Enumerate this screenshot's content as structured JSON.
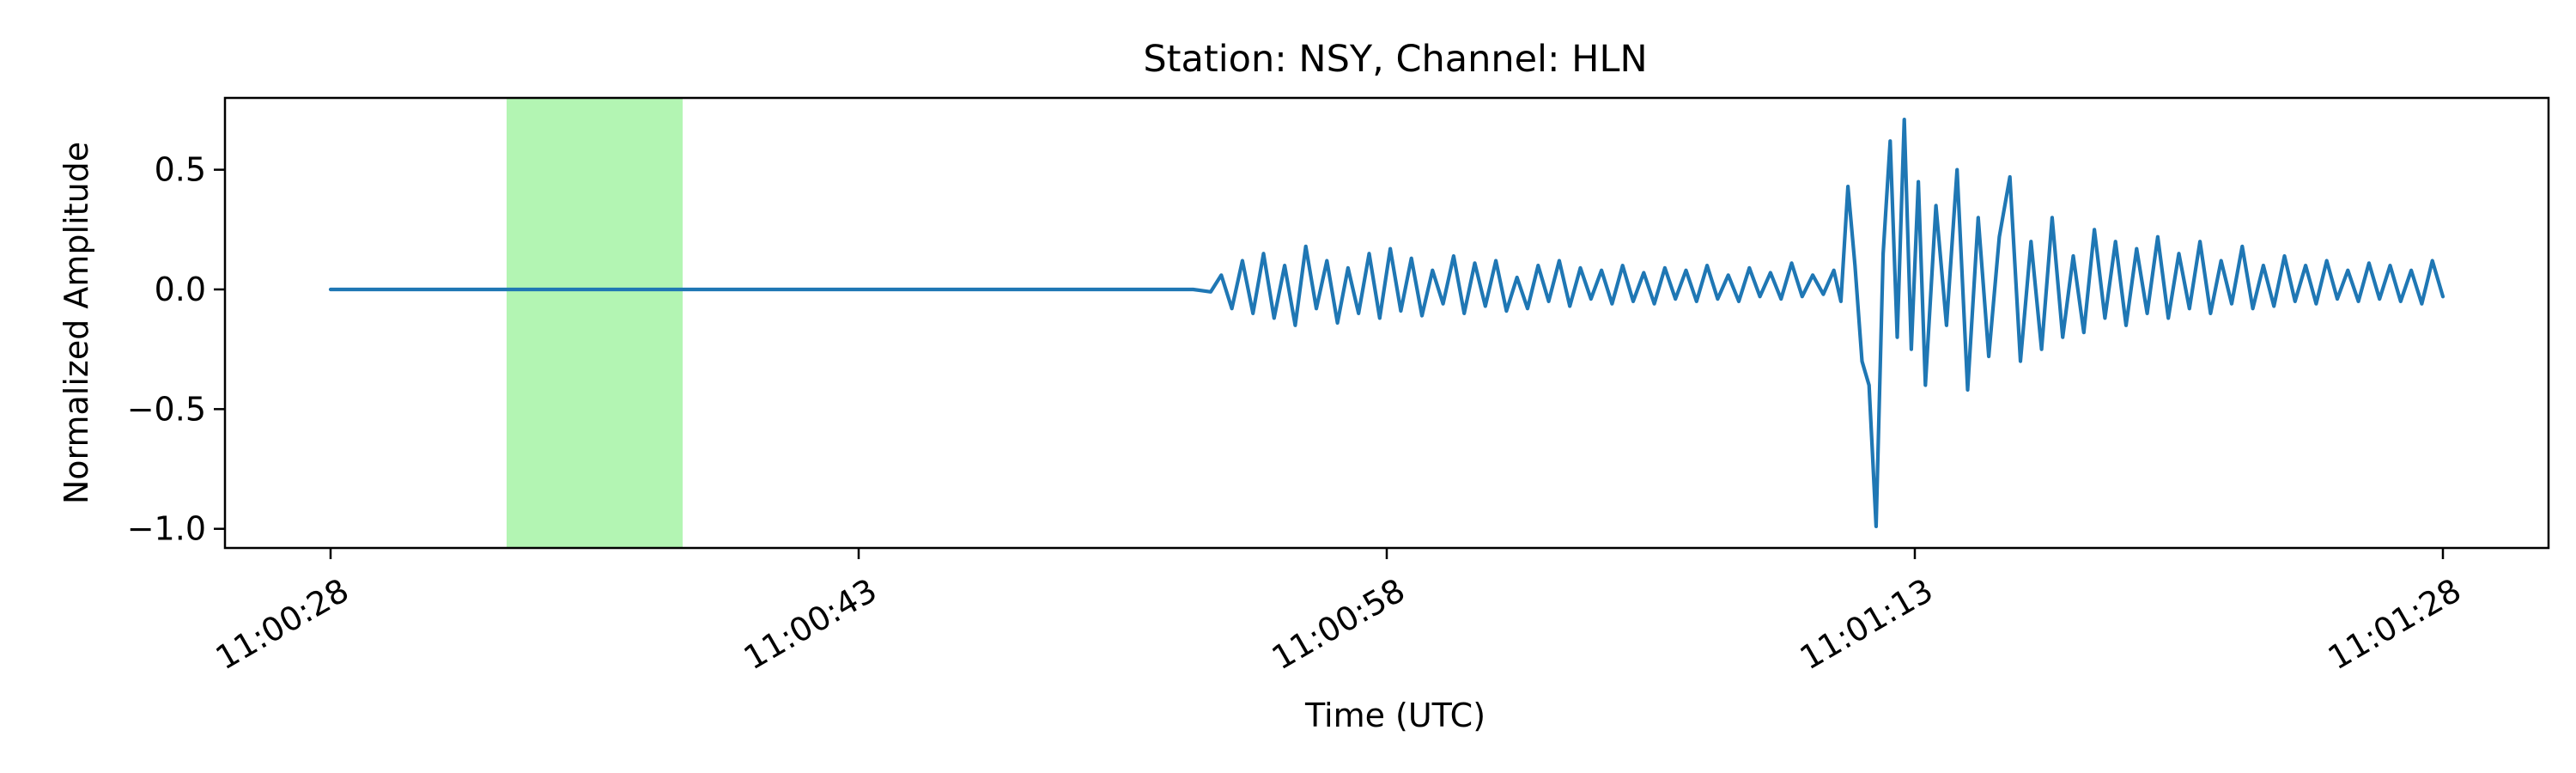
{
  "chart_data": {
    "type": "line",
    "title": "Station: NSY, Channel: HLN",
    "xlabel": "Time (UTC)",
    "ylabel": "Normalized Amplitude",
    "x_tick_values": [
      0,
      15,
      30,
      45,
      60
    ],
    "x_tick_labels": [
      "11:00:28",
      "11:00:43",
      "11:00:58",
      "11:01:13",
      "11:01:28"
    ],
    "y_ticks": [
      0.5,
      0.0,
      -0.5,
      -1.0
    ],
    "y_tick_labels": [
      "0.5",
      "0.0",
      "−0.5",
      "−1.0"
    ],
    "xlim": [
      -3.0,
      63.0
    ],
    "ylim": [
      -1.08,
      0.8
    ],
    "grid": false,
    "highlight_window": {
      "start": 5.0,
      "end": 10.0,
      "color": "#b3f5b3"
    },
    "series": [
      {
        "color": "#1f77b4",
        "x": [
          0,
          5,
          10,
          15,
          20,
          24.5,
          25.0,
          25.3,
          25.6,
          25.9,
          26.2,
          26.5,
          26.8,
          27.1,
          27.4,
          27.7,
          28.0,
          28.3,
          28.6,
          28.9,
          29.2,
          29.5,
          29.8,
          30.1,
          30.4,
          30.7,
          31.0,
          31.3,
          31.6,
          31.9,
          32.2,
          32.5,
          32.8,
          33.1,
          33.4,
          33.7,
          34.0,
          34.3,
          34.6,
          34.9,
          35.2,
          35.5,
          35.8,
          36.1,
          36.4,
          36.7,
          37.0,
          37.3,
          37.6,
          37.9,
          38.2,
          38.5,
          38.8,
          39.1,
          39.4,
          39.7,
          40.0,
          40.3,
          40.6,
          40.9,
          41.2,
          41.5,
          41.8,
          42.1,
          42.4,
          42.7,
          42.9,
          43.1,
          43.3,
          43.5,
          43.7,
          43.9,
          44.1,
          44.3,
          44.5,
          44.7,
          44.9,
          45.1,
          45.3,
          45.6,
          45.9,
          46.2,
          46.5,
          46.8,
          47.1,
          47.4,
          47.7,
          48.0,
          48.3,
          48.6,
          48.9,
          49.2,
          49.5,
          49.8,
          50.1,
          50.4,
          50.7,
          51.0,
          51.3,
          51.6,
          51.9,
          52.2,
          52.5,
          52.8,
          53.1,
          53.4,
          53.7,
          54.0,
          54.3,
          54.6,
          54.9,
          55.2,
          55.5,
          55.8,
          56.1,
          56.4,
          56.7,
          57.0,
          57.3,
          57.6,
          57.9,
          58.2,
          58.5,
          58.8,
          59.1,
          59.4,
          59.7,
          60.0
        ],
        "y": [
          0.0,
          0.0,
          0.0,
          0.0,
          0.0,
          0.0,
          -0.01,
          0.06,
          -0.08,
          0.12,
          -0.1,
          0.15,
          -0.12,
          0.1,
          -0.15,
          0.18,
          -0.08,
          0.12,
          -0.14,
          0.09,
          -0.1,
          0.15,
          -0.12,
          0.17,
          -0.09,
          0.13,
          -0.11,
          0.08,
          -0.06,
          0.14,
          -0.1,
          0.11,
          -0.07,
          0.12,
          -0.09,
          0.05,
          -0.08,
          0.1,
          -0.05,
          0.12,
          -0.07,
          0.09,
          -0.04,
          0.08,
          -0.06,
          0.1,
          -0.05,
          0.07,
          -0.06,
          0.09,
          -0.04,
          0.08,
          -0.05,
          0.1,
          -0.04,
          0.06,
          -0.05,
          0.09,
          -0.03,
          0.07,
          -0.04,
          0.11,
          -0.03,
          0.06,
          -0.02,
          0.08,
          -0.05,
          0.43,
          0.1,
          -0.3,
          -0.4,
          -0.99,
          0.15,
          0.62,
          -0.2,
          0.71,
          -0.25,
          0.45,
          -0.4,
          0.35,
          -0.15,
          0.5,
          -0.42,
          0.3,
          -0.28,
          0.22,
          0.47,
          -0.3,
          0.2,
          -0.25,
          0.3,
          -0.2,
          0.14,
          -0.18,
          0.25,
          -0.12,
          0.2,
          -0.15,
          0.17,
          -0.1,
          0.22,
          -0.12,
          0.15,
          -0.08,
          0.2,
          -0.1,
          0.12,
          -0.06,
          0.18,
          -0.08,
          0.1,
          -0.07,
          0.14,
          -0.05,
          0.1,
          -0.06,
          0.12,
          -0.04,
          0.08,
          -0.05,
          0.11,
          -0.04,
          0.1,
          -0.05,
          0.08,
          -0.06,
          0.12,
          -0.03
        ]
      }
    ]
  }
}
